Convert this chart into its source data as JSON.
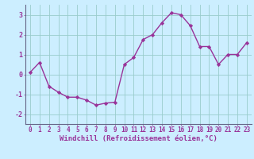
{
  "x": [
    0,
    1,
    2,
    3,
    4,
    5,
    6,
    7,
    8,
    9,
    10,
    11,
    12,
    13,
    14,
    15,
    16,
    17,
    18,
    19,
    20,
    21,
    22,
    23
  ],
  "y": [
    0.1,
    0.6,
    -0.6,
    -0.9,
    -1.15,
    -1.15,
    -1.3,
    -1.55,
    -1.45,
    -1.4,
    0.5,
    0.85,
    1.75,
    2.0,
    2.6,
    3.1,
    3.0,
    2.45,
    1.4,
    1.4,
    0.5,
    1.0,
    1.0,
    1.6
  ],
  "line_color": "#993399",
  "marker": "D",
  "marker_size": 2.2,
  "line_width": 1.0,
  "xlabel": "Windchill (Refroidissement éolien,°C)",
  "xlabel_fontsize": 6.5,
  "background_color": "#cceeff",
  "grid_color": "#99cccc",
  "tick_label_color": "#993399",
  "axis_label_color": "#993399",
  "ylim": [
    -2.5,
    3.5
  ],
  "xlim": [
    -0.5,
    23.5
  ],
  "yticks": [
    -2,
    -1,
    0,
    1,
    2,
    3
  ],
  "xticks": [
    0,
    1,
    2,
    3,
    4,
    5,
    6,
    7,
    8,
    9,
    10,
    11,
    12,
    13,
    14,
    15,
    16,
    17,
    18,
    19,
    20,
    21,
    22,
    23
  ],
  "tick_fontsize": 5.5,
  "spine_color": "#666688"
}
